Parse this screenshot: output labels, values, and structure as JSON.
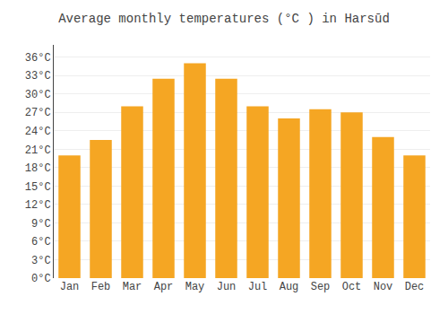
{
  "chart_data": {
    "type": "bar",
    "title": "Average monthly temperatures (°C ) in Harsūd",
    "categories": [
      "Jan",
      "Feb",
      "Mar",
      "Apr",
      "May",
      "Jun",
      "Jul",
      "Aug",
      "Sep",
      "Oct",
      "Nov",
      "Dec"
    ],
    "values": [
      20.0,
      22.5,
      28.0,
      32.5,
      35.0,
      32.5,
      28.0,
      26.0,
      27.5,
      27.0,
      23.0,
      20.0
    ],
    "color": "#F5A623",
    "ylim": [
      0,
      38
    ],
    "yticks": [
      {
        "value": 0,
        "label": "0°C"
      },
      {
        "value": 3,
        "label": "3°C"
      },
      {
        "value": 6,
        "label": "6°C"
      },
      {
        "value": 9,
        "label": "9°C"
      },
      {
        "value": 12,
        "label": "12°C"
      },
      {
        "value": 15,
        "label": "15°C"
      },
      {
        "value": 18,
        "label": "18°C"
      },
      {
        "value": 21,
        "label": "21°C"
      },
      {
        "value": 24,
        "label": "24°C"
      },
      {
        "value": 27,
        "label": "27°C"
      },
      {
        "value": 30,
        "label": "30°C"
      },
      {
        "value": 33,
        "label": "33°C"
      },
      {
        "value": 36,
        "label": "36°C"
      }
    ],
    "grid": true
  }
}
